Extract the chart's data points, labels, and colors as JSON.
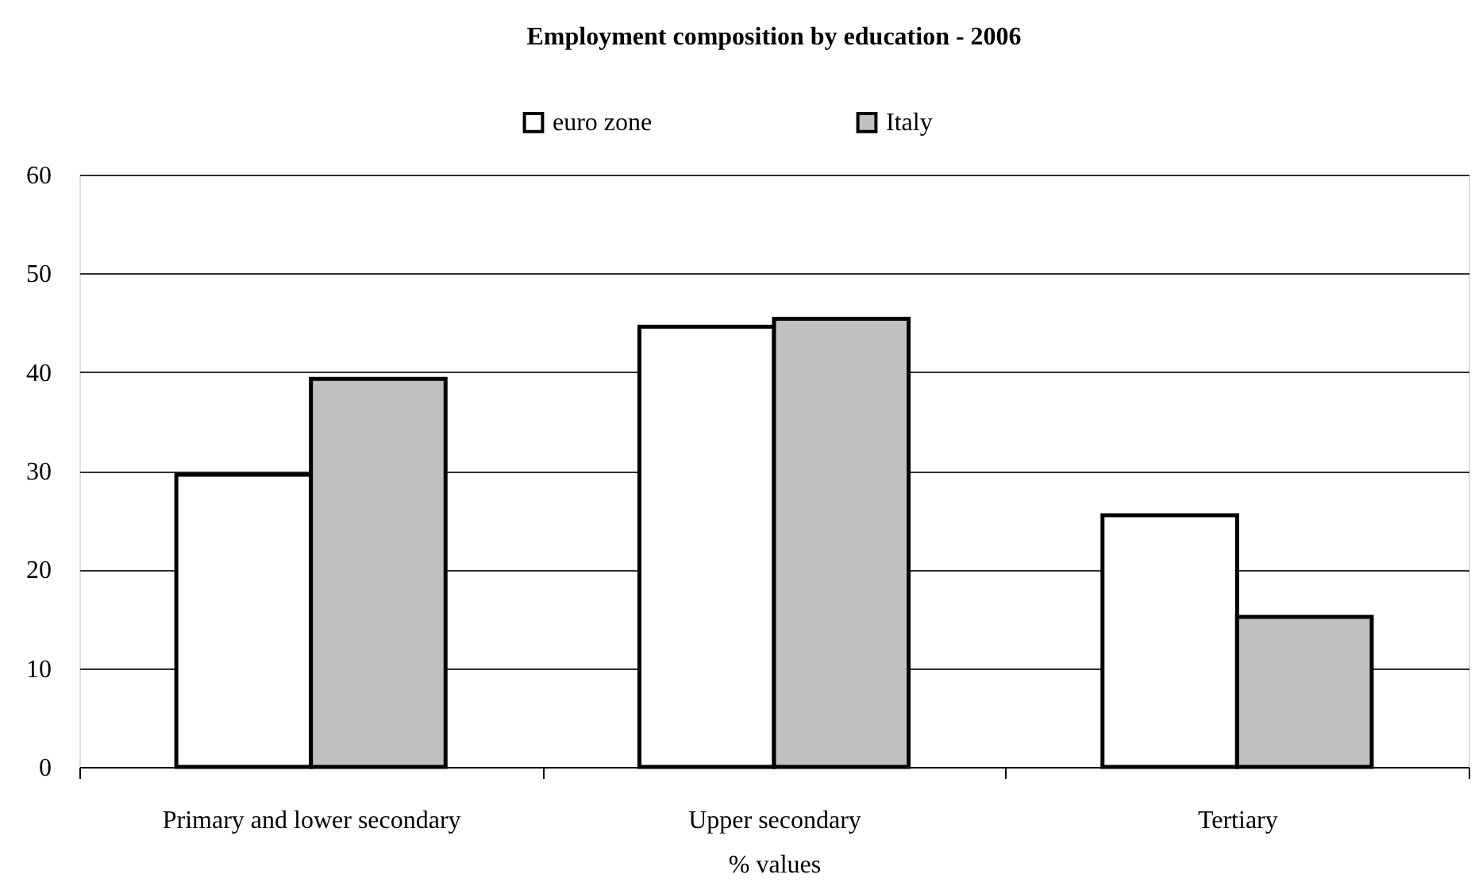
{
  "chart_data": {
    "type": "bar",
    "title": "Employment composition by education - 2006",
    "xlabel": "% values",
    "categories": [
      "Primary and lower secondary",
      "Upper secondary",
      "Tertiary"
    ],
    "series": [
      {
        "name": "euro zone",
        "color": "#ffffff",
        "values": [
          29.6,
          44.6,
          25.5
        ]
      },
      {
        "name": "Italy",
        "color": "#c0c0c0",
        "values": [
          39.3,
          45.4,
          15.2
        ]
      }
    ],
    "ylim": [
      0,
      60
    ],
    "yticks": [
      0,
      10,
      20,
      30,
      40,
      50,
      60
    ],
    "grid": "y",
    "legend": "top"
  }
}
